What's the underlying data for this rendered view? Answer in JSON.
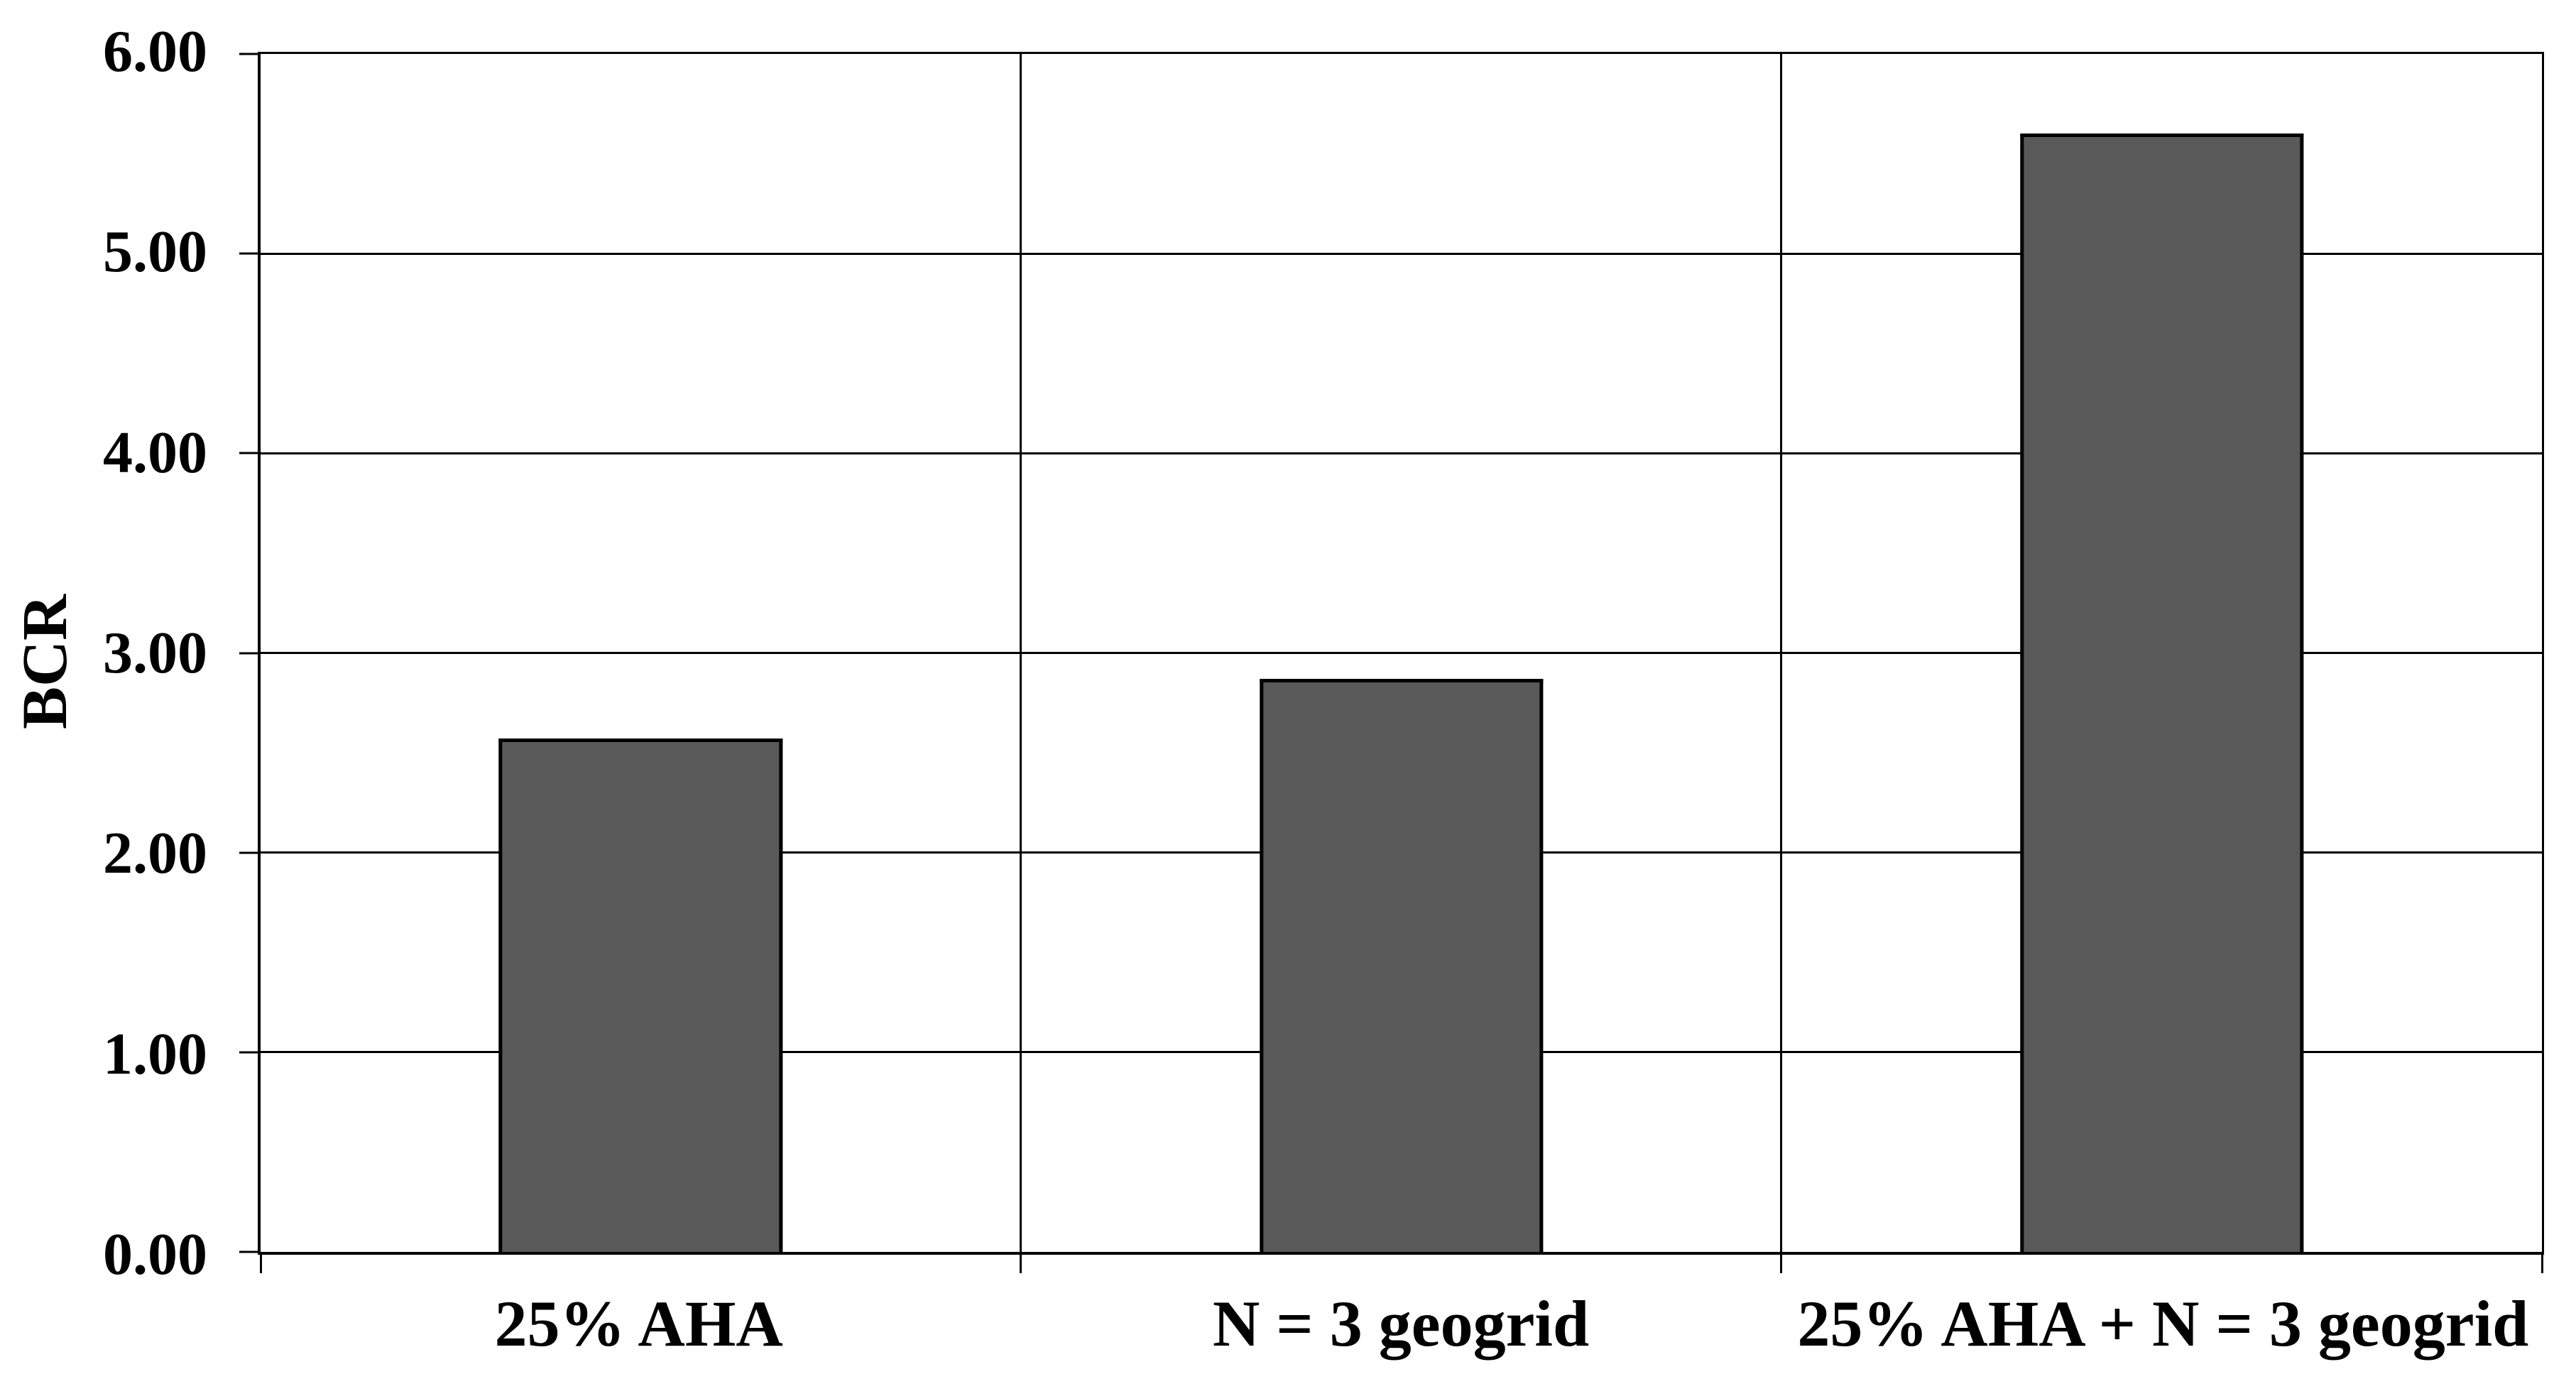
{
  "chart_data": {
    "type": "bar",
    "categories": [
      "25% AHA",
      "N = 3 geogrid",
      "25% AHA + N = 3 geogrid"
    ],
    "values": [
      2.57,
      2.87,
      5.6
    ],
    "title": "",
    "xlabel": "",
    "ylabel": "BCR",
    "ylim": [
      0,
      6
    ],
    "ytick_step": 1,
    "ytick_labels": [
      "0.00",
      "1.00",
      "2.00",
      "3.00",
      "4.00",
      "5.00",
      "6.00"
    ],
    "grid": "on",
    "legend": "none",
    "bar_color": "#595959",
    "bar_border_color": "#000000",
    "axis_color": "#000000",
    "background_color": "#ffffff"
  }
}
